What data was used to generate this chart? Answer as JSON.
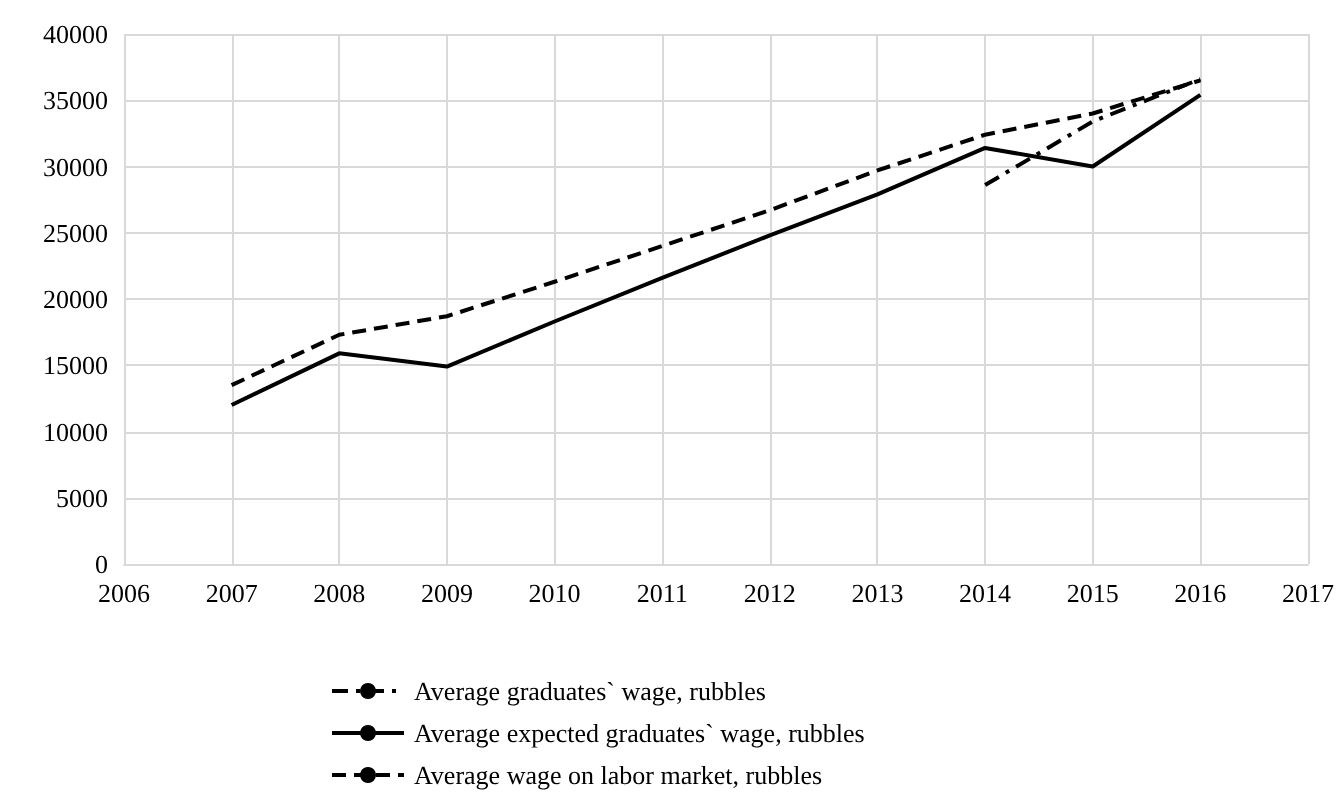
{
  "chart_data": {
    "type": "line",
    "x": [
      2007,
      2008,
      2009,
      2010,
      2011,
      2012,
      2013,
      2014,
      2015,
      2016
    ],
    "series": [
      {
        "name": "Average graduates` wage, rubbles",
        "color": "#000000",
        "line_style": "dashdot",
        "x": [
          2014,
          2015,
          2016
        ],
        "values": [
          28600,
          33400,
          36600
        ]
      },
      {
        "name": "Average expected graduates` wage, rubbles",
        "color": "#000000",
        "line_style": "solid",
        "values": [
          12000,
          15900,
          14900,
          18300,
          21600,
          24800,
          27900,
          31400,
          30000,
          35400
        ]
      },
      {
        "name": "Average wage on labor market, rubbles",
        "color": "#000000",
        "line_style": "dashed",
        "values": [
          13500,
          17300,
          18700,
          21300,
          24000,
          26700,
          29700,
          32400,
          34000,
          36500
        ]
      }
    ],
    "xlim": [
      2006,
      2017
    ],
    "xticks": [
      2006,
      2007,
      2008,
      2009,
      2010,
      2011,
      2012,
      2013,
      2014,
      2015,
      2016,
      2017
    ],
    "ylim": [
      0,
      40000
    ],
    "yticks": [
      0,
      5000,
      10000,
      15000,
      20000,
      25000,
      30000,
      35000,
      40000
    ],
    "grid": true,
    "legend": "bottom",
    "marker": "none"
  }
}
